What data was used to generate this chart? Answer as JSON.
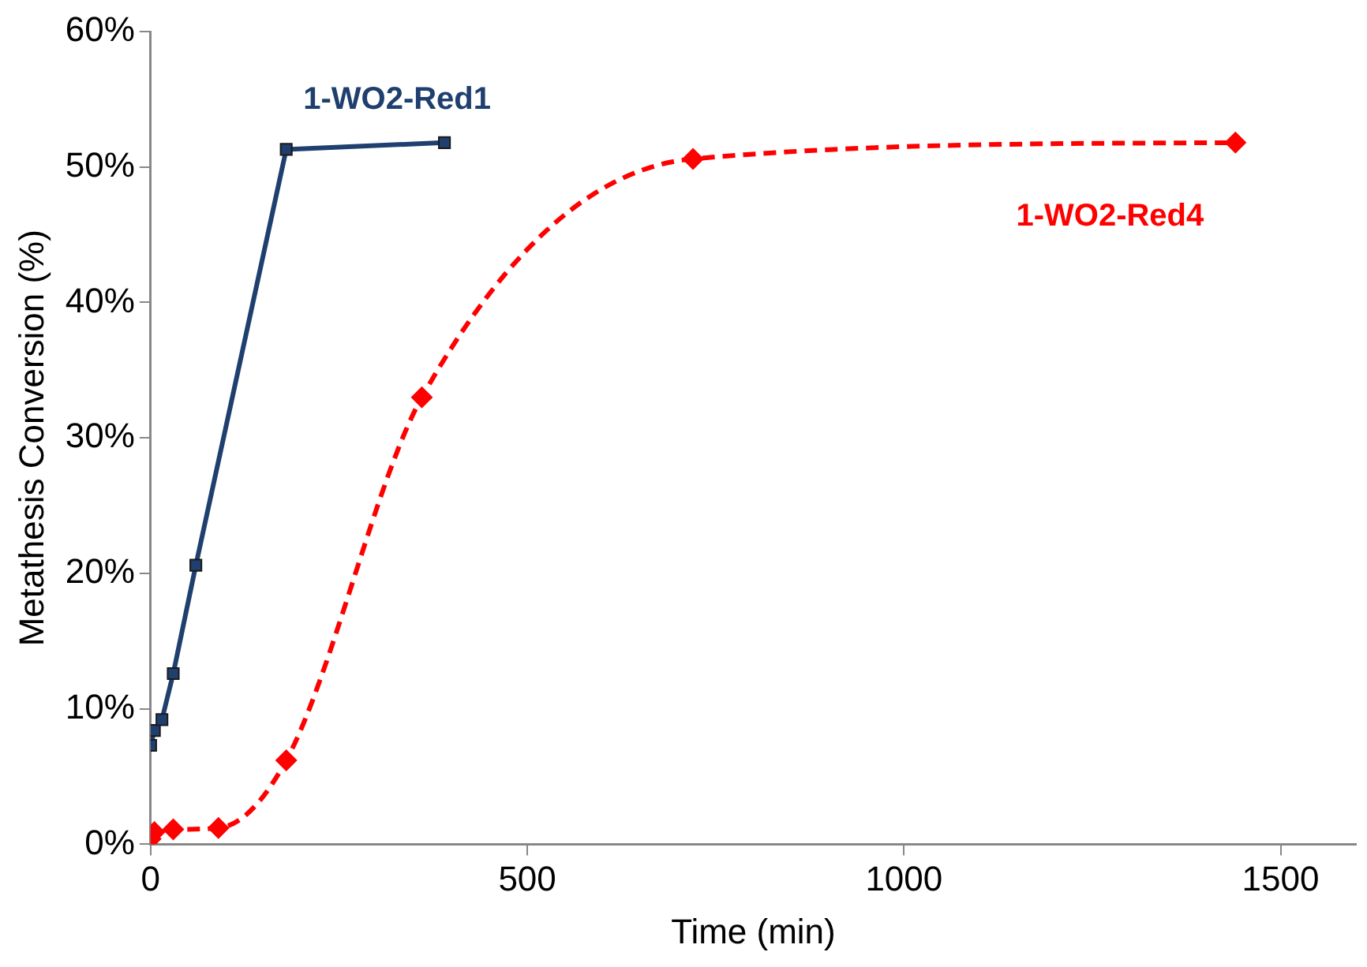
{
  "chart_data": {
    "type": "line",
    "xlabel": "Time (min)",
    "ylabel": "Metathesis Conversion (%)",
    "xlim": [
      0,
      1600
    ],
    "xticks": [
      0,
      500,
      1000,
      1500
    ],
    "ylim": [
      0,
      60
    ],
    "yticks": [
      {
        "value": 0,
        "label": "0%"
      },
      {
        "value": 10,
        "label": "10%"
      },
      {
        "value": 20,
        "label": "20%"
      },
      {
        "value": 30,
        "label": "30%"
      },
      {
        "value": 40,
        "label": "40%"
      },
      {
        "value": 50,
        "label": "50%"
      },
      {
        "value": 60,
        "label": "60%"
      }
    ],
    "grid": false,
    "legend": false,
    "series": [
      {
        "name": "1-WO2-Red1",
        "color": "#1f3f6f",
        "marker": "square",
        "line_style": "solid",
        "x": [
          0,
          5,
          15,
          30,
          60,
          180,
          390
        ],
        "values": [
          7.3,
          8.4,
          9.2,
          12.6,
          20.6,
          51.3,
          51.8
        ]
      },
      {
        "name": "1-WO2-Red4",
        "color": "#ff0000",
        "marker": "diamond",
        "line_style": "dashed",
        "x": [
          0,
          5,
          30,
          90,
          180,
          360,
          720,
          1440
        ],
        "values": [
          0.4,
          0.9,
          1.1,
          1.2,
          6.2,
          33,
          50.6,
          51.8
        ]
      }
    ]
  }
}
